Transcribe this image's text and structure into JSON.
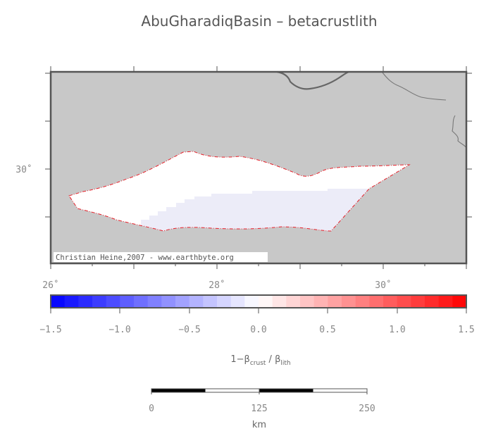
{
  "title": "AbuGharadiqBasin – betacrustlith",
  "map": {
    "lon_labels": [
      "26˚",
      "28˚",
      "30˚"
    ],
    "lat_labels": [
      "30˚"
    ],
    "credit": "Christian Heine,2007 - www.earthbyte.org",
    "land_color": "#c8c8c8",
    "basin_fill_color": "#ffffff",
    "basin_low_fill_color": "#ececf8",
    "outline_color": "#e8202a"
  },
  "colorbar": {
    "ticks": [
      "−1.5",
      "−1.0",
      "−0.5",
      "0.0",
      "0.5",
      "1.0",
      "1.5"
    ],
    "label_main": "1−β",
    "label_sub1": "crust",
    "label_mid": " / β",
    "label_sub2": "lith",
    "min": -1.5,
    "max": 1.5,
    "steps": 30,
    "neg_color": "#0000ff",
    "pos_color": "#ff0000",
    "mid_color": "#ffffff"
  },
  "scalebar": {
    "ticks": [
      "0",
      "125",
      "250"
    ],
    "unit": "km"
  }
}
